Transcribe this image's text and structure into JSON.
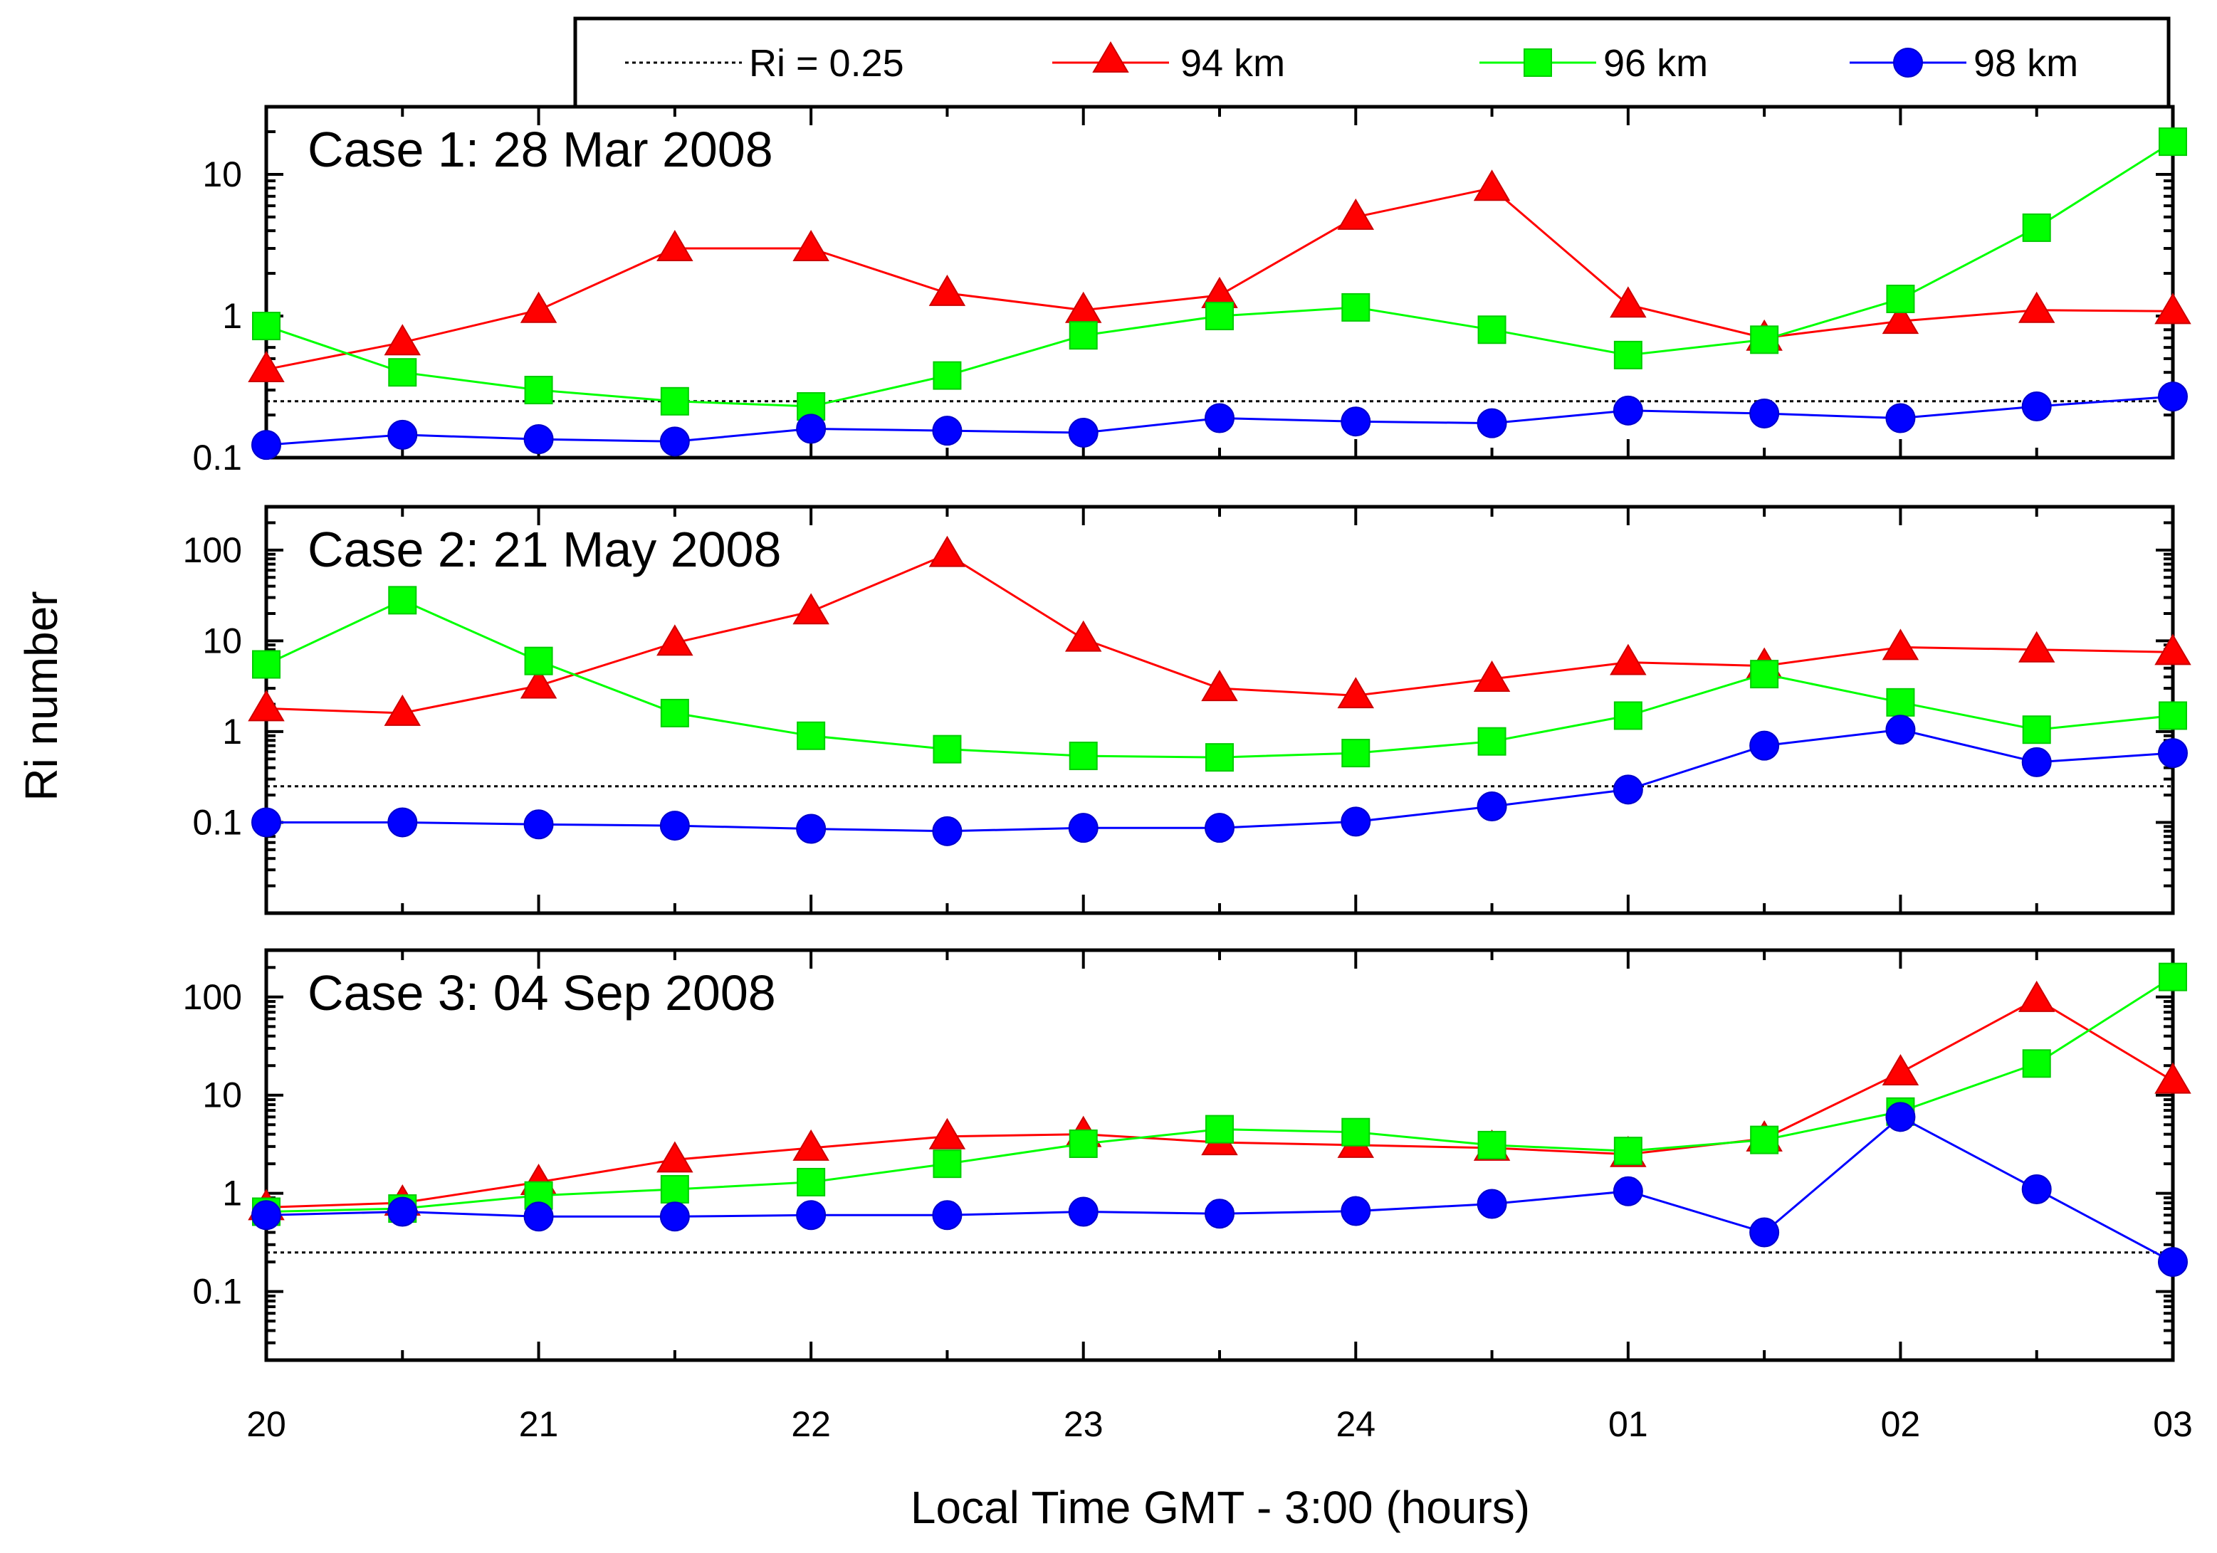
{
  "chart_data": {
    "type": "line",
    "ylabel": "Ri number",
    "xlabel": "Local Time GMT - 3:00 (hours)",
    "y_scale": "log",
    "x_tick_labels": [
      "20",
      "21",
      "22",
      "23",
      "24",
      "01",
      "02",
      "03"
    ],
    "x_points": [
      "20:00",
      "20:30",
      "21:00",
      "21:30",
      "22:00",
      "22:30",
      "23:00",
      "23:30",
      "24:00",
      "24:30",
      "01:00",
      "01:30",
      "02:00",
      "02:30",
      "03:00"
    ],
    "threshold": {
      "label": "Ri = 0.25",
      "value": 0.25
    },
    "legend": [
      {
        "label": "Ri = 0.25",
        "style": "dotted",
        "color": "#000000"
      },
      {
        "label": "94 km",
        "marker": "triangle",
        "color": "#ff0000"
      },
      {
        "label": "96 km",
        "marker": "square",
        "color": "#00ff00"
      },
      {
        "label": "98 km",
        "marker": "circle",
        "color": "#0000ff"
      }
    ],
    "panels": [
      {
        "title": "Case 1: 28 Mar 2008",
        "ylim": [
          0.1,
          30
        ],
        "y_tick_labels": [
          "0.1",
          "1",
          "10"
        ],
        "series": [
          {
            "name": "94 km",
            "values": [
              0.42,
              0.65,
              1.1,
              3.0,
              3.0,
              1.45,
              1.1,
              1.4,
              5.0,
              8.0,
              1.2,
              0.7,
              0.92,
              1.1,
              1.08
            ]
          },
          {
            "name": "96 km",
            "values": [
              0.85,
              0.4,
              0.3,
              0.25,
              0.23,
              0.38,
              0.73,
              1.0,
              1.15,
              0.8,
              0.53,
              0.68,
              1.32,
              4.2,
              17.0
            ]
          },
          {
            "name": "98 km",
            "values": [
              0.123,
              0.145,
              0.135,
              0.13,
              0.16,
              0.155,
              0.15,
              0.19,
              0.18,
              0.175,
              0.215,
              0.205,
              0.19,
              0.23,
              0.27
            ]
          }
        ]
      },
      {
        "title": "Case 2: 21 May 2008",
        "ylim": [
          0.01,
          300
        ],
        "y_tick_labels": [
          "0.1",
          "1",
          "10",
          "100"
        ],
        "series": [
          {
            "name": "94 km",
            "values": [
              1.8,
              1.6,
              3.2,
              9.5,
              21,
              90,
              10.5,
              3.0,
              2.5,
              3.8,
              5.8,
              5.3,
              8.5,
              8.0,
              7.5
            ]
          },
          {
            "name": "96 km",
            "values": [
              5.5,
              28,
              6.0,
              1.6,
              0.9,
              0.64,
              0.54,
              0.52,
              0.58,
              0.78,
              1.5,
              4.3,
              2.1,
              1.05,
              1.5
            ]
          },
          {
            "name": "98 km",
            "values": [
              0.1,
              0.1,
              0.095,
              0.092,
              0.085,
              0.08,
              0.087,
              0.087,
              0.102,
              0.15,
              0.23,
              0.7,
              1.05,
              0.46,
              0.58
            ]
          }
        ]
      },
      {
        "title": "Case 3: 04 Sep 2008",
        "ylim": [
          0.02,
          300
        ],
        "y_tick_labels": [
          "0.1",
          "1",
          "10",
          "100"
        ],
        "series": [
          {
            "name": "94 km",
            "values": [
              0.72,
              0.8,
              1.3,
              2.2,
              2.9,
              3.8,
              4.0,
              3.3,
              3.1,
              2.9,
              2.5,
              3.6,
              17,
              95,
              14
            ]
          },
          {
            "name": "96 km",
            "values": [
              0.65,
              0.7,
              0.95,
              1.1,
              1.3,
              2.0,
              3.2,
              4.5,
              4.2,
              3.1,
              2.7,
              3.5,
              6.8,
              21,
              160
            ]
          },
          {
            "name": "98 km",
            "values": [
              0.6,
              0.65,
              0.58,
              0.58,
              0.6,
              0.6,
              0.65,
              0.62,
              0.66,
              0.78,
              1.05,
              0.4,
              6.0,
              1.1,
              0.2
            ]
          }
        ]
      }
    ]
  }
}
